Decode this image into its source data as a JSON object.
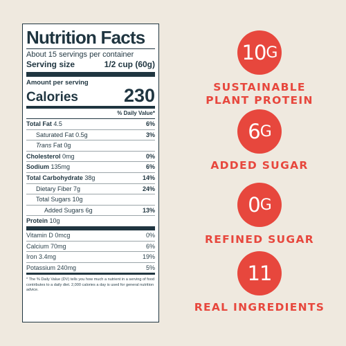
{
  "label": {
    "title": "Nutrition Facts",
    "servings_per_container": "About 15 servings per container",
    "serving_size_label": "Serving size",
    "serving_size_value": "1/2 cup (60g)",
    "amount_per_serving": "Amount per serving",
    "calories_label": "Calories",
    "calories_value": "230",
    "dv_header": "% Daily Value*",
    "nutrients": [
      {
        "label": "Total Fat",
        "amount": "4.5",
        "dv": "6%"
      },
      {
        "label": "Saturated Fat",
        "amount": "0.5g",
        "dv": "3%"
      },
      {
        "label": "Trans",
        "amount": "Fat 0g",
        "dv": ""
      },
      {
        "label": "Cholesterol",
        "amount": "0mg",
        "dv": "0%"
      },
      {
        "label": "Sodium",
        "amount": "135mg",
        "dv": "6%"
      },
      {
        "label": "Total Carbohydrate",
        "amount": "38g",
        "dv": "14%"
      },
      {
        "label": "Dietary Fiber",
        "amount": "7g",
        "dv": "24%"
      },
      {
        "label": "Total Sugars",
        "amount": "10g",
        "dv": ""
      },
      {
        "label": "Added Sugars",
        "amount": "6g",
        "dv": "13%"
      },
      {
        "label": "Protein",
        "amount": "10g",
        "dv": ""
      }
    ],
    "vitamins": [
      {
        "label": "Vitamin D",
        "amount": "0mcg",
        "dv": "0%"
      },
      {
        "label": "Calcium",
        "amount": "70mg",
        "dv": "6%"
      },
      {
        "label": "Iron",
        "amount": "3.4mg",
        "dv": "19%"
      },
      {
        "label": "Potassium",
        "amount": "240mg",
        "dv": "5%"
      }
    ],
    "footnote": "* The % Daily Value (DV) tells you how much a nutrient in a serving of food contributes to a daily diet. 2,000 calories a day is used for general nutrition advice."
  },
  "highlights": [
    {
      "number": "10",
      "unit": "G",
      "caption_line1": "Sustainable",
      "caption_line2": "Plant Protein"
    },
    {
      "number": "6",
      "unit": "G",
      "caption_line1": "Added Sugar",
      "caption_line2": ""
    },
    {
      "number": "0",
      "unit": "G",
      "caption_line1": "Refined Sugar",
      "caption_line2": ""
    },
    {
      "number": "11",
      "unit": "",
      "caption_line1": "Real Ingredients",
      "caption_line2": ""
    }
  ],
  "colors": {
    "background": "#efe9df",
    "accent": "#e7473d",
    "label_ink": "#1f3540"
  }
}
